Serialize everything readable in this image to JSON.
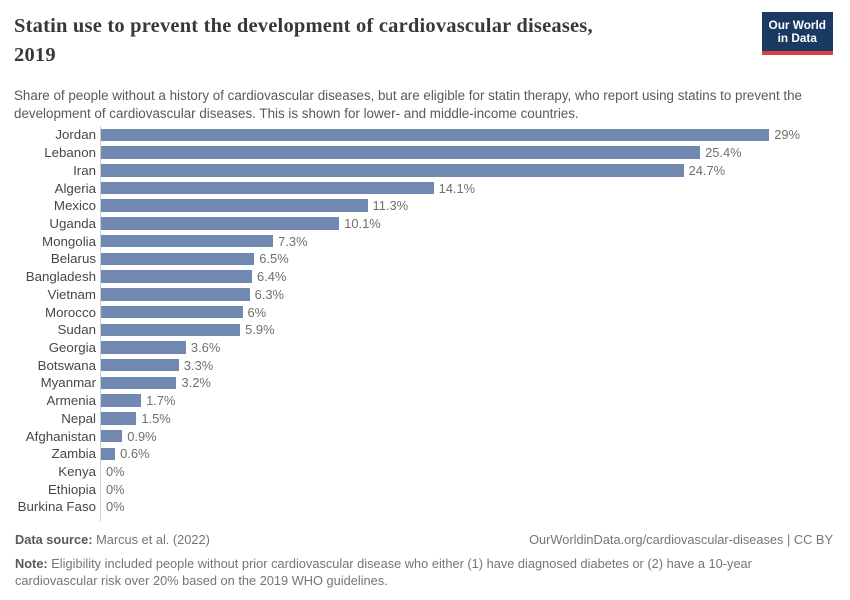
{
  "colors": {
    "bar": "#7189b0",
    "axis": "#cdced0",
    "title": "#383838",
    "subtitle": "#58595b",
    "country_label": "#45474c",
    "value_label": "#6f6f6f",
    "logo_bg": "#1a3a63",
    "logo_accent": "#dc3e3e"
  },
  "header": {
    "title_line1": "Statin use to prevent the development of cardiovascular diseases,",
    "title_line2": "2019",
    "subtitle": "Share of people without a history of cardiovascular diseases, but are eligible for statin therapy, who report using statins to prevent the development of cardiovascular diseases. This is shown for lower- and middle-income countries.",
    "logo": {
      "line1": "Our World",
      "line2": "in Data"
    }
  },
  "chart_data": {
    "type": "bar",
    "orientation": "horizontal",
    "title": "Statin use to prevent the development of cardiovascular diseases, 2019",
    "unit": "%",
    "xlim": [
      0,
      29
    ],
    "grid": false,
    "value_labels_position": "end-of-bar",
    "categories": [
      "Jordan",
      "Lebanon",
      "Iran",
      "Algeria",
      "Mexico",
      "Uganda",
      "Mongolia",
      "Belarus",
      "Bangladesh",
      "Vietnam",
      "Morocco",
      "Sudan",
      "Georgia",
      "Botswana",
      "Myanmar",
      "Armenia",
      "Nepal",
      "Afghanistan",
      "Zambia",
      "Kenya",
      "Ethiopia",
      "Burkina Faso"
    ],
    "values": [
      29,
      25.4,
      24.7,
      14.1,
      11.3,
      10.1,
      7.3,
      6.5,
      6.4,
      6.3,
      6,
      5.9,
      3.6,
      3.3,
      3.2,
      1.7,
      1.5,
      0.9,
      0.6,
      0,
      0,
      0
    ],
    "value_labels": [
      "29%",
      "25.4%",
      "24.7%",
      "14.1%",
      "11.3%",
      "10.1%",
      "7.3%",
      "6.5%",
      "6.4%",
      "6.3%",
      "6%",
      "5.9%",
      "3.6%",
      "3.3%",
      "3.2%",
      "1.7%",
      "1.5%",
      "0.9%",
      "0.6%",
      "0%",
      "0%",
      "0%"
    ]
  },
  "footer": {
    "source_label": "Data source:",
    "source_value": "Marcus et al. (2022)",
    "attribution": "OurWorldinData.org/cardiovascular-diseases | CC BY",
    "note_label": "Note:",
    "note_value": "Eligibility included people without prior cardiovascular disease who either (1) have diagnosed diabetes or (2) have a 10-year cardiovascular risk over 20% based on the 2019 WHO guidelines."
  }
}
